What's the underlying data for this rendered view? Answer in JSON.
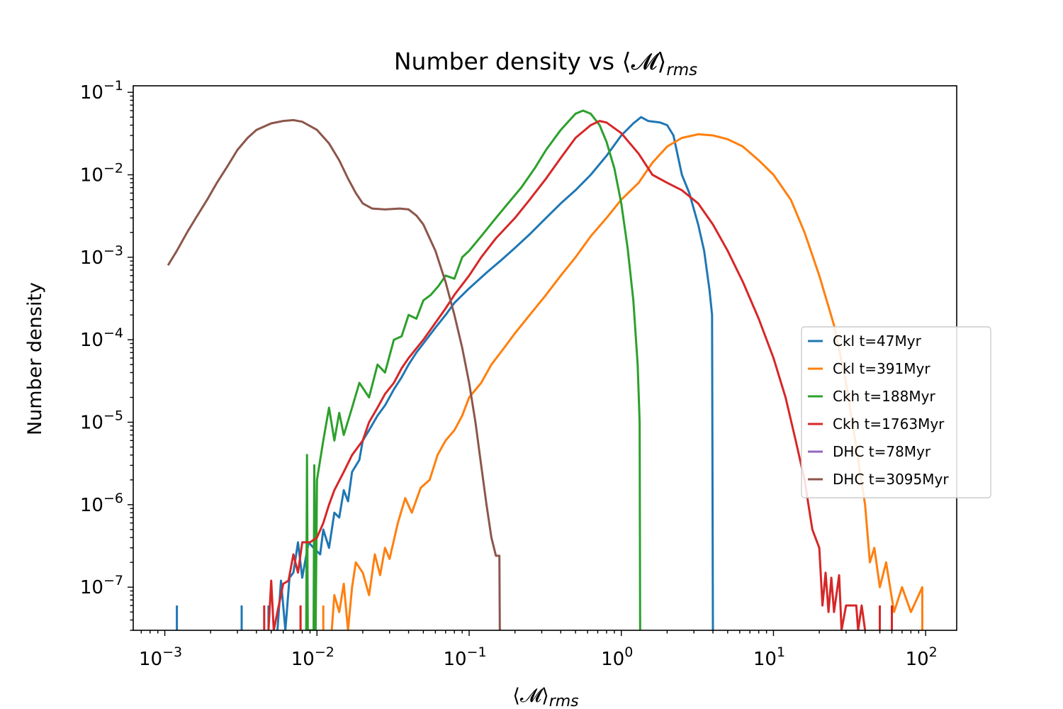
{
  "chart_data": {
    "type": "line",
    "title": "Number density vs ⟨𝓜⟩",
    "title_subscript": "rms",
    "xlabel": "⟨𝓜⟩",
    "xlabel_subscript": "rms",
    "ylabel": "Number density",
    "xscale": "log",
    "yscale": "log",
    "xlim": [
      0.00062,
      160
    ],
    "ylim": [
      3e-08,
      0.12
    ],
    "legend_position": "center-right",
    "xticks": [
      {
        "value": 0.001,
        "base": "10",
        "exp": "−3"
      },
      {
        "value": 0.01,
        "base": "10",
        "exp": "−2"
      },
      {
        "value": 0.1,
        "base": "10",
        "exp": "−1"
      },
      {
        "value": 1,
        "base": "10",
        "exp": "0"
      },
      {
        "value": 10,
        "base": "10",
        "exp": "1"
      },
      {
        "value": 100,
        "base": "10",
        "exp": "2"
      }
    ],
    "yticks": [
      {
        "value": 1e-07,
        "base": "10",
        "exp": "−7"
      },
      {
        "value": 1e-06,
        "base": "10",
        "exp": "−6"
      },
      {
        "value": 1e-05,
        "base": "10",
        "exp": "−5"
      },
      {
        "value": 0.0001,
        "base": "10",
        "exp": "−4"
      },
      {
        "value": 0.001,
        "base": "10",
        "exp": "−3"
      },
      {
        "value": 0.01,
        "base": "10",
        "exp": "−2"
      },
      {
        "value": 0.1,
        "base": "10",
        "exp": "−1"
      }
    ],
    "series": [
      {
        "name": "Ckl t=47Myr",
        "color": "#1f77b4",
        "spikes": [
          [
            0.0012,
            6e-08
          ],
          [
            0.0032,
            6e-08
          ],
          [
            0.0048,
            6e-08
          ]
        ],
        "points": [
          [
            0.0055,
            3e-08
          ],
          [
            0.0058,
            1.2e-07
          ],
          [
            0.0062,
            3e-08
          ],
          [
            0.0066,
            1.3e-07
          ],
          [
            0.007,
            1.5e-07
          ],
          [
            0.0075,
            3.5e-07
          ],
          [
            0.008,
            1.3e-07
          ],
          [
            0.0088,
            3.5e-07
          ],
          [
            0.0095,
            3e-07
          ],
          [
            0.0105,
            2.5e-07
          ],
          [
            0.011,
            5e-07
          ],
          [
            0.012,
            3e-07
          ],
          [
            0.013,
            8e-07
          ],
          [
            0.014,
            7e-07
          ],
          [
            0.015,
            1.5e-06
          ],
          [
            0.016,
            1.1e-06
          ],
          [
            0.017,
            2.5e-06
          ],
          [
            0.019,
            3.5e-06
          ],
          [
            0.02,
            6e-06
          ],
          [
            0.022,
            8e-06
          ],
          [
            0.025,
            1.2e-05
          ],
          [
            0.028,
            1.6e-05
          ],
          [
            0.032,
            2.5e-05
          ],
          [
            0.036,
            3.5e-05
          ],
          [
            0.04,
            5e-05
          ],
          [
            0.045,
            7e-05
          ],
          [
            0.05,
            9e-05
          ],
          [
            0.06,
            0.00014
          ],
          [
            0.07,
            0.0002
          ],
          [
            0.08,
            0.00028
          ],
          [
            0.1,
            0.00042
          ],
          [
            0.13,
            0.00065
          ],
          [
            0.16,
            0.0009
          ],
          [
            0.2,
            0.0013
          ],
          [
            0.25,
            0.0019
          ],
          [
            0.32,
            0.003
          ],
          [
            0.4,
            0.0045
          ],
          [
            0.5,
            0.0065
          ],
          [
            0.63,
            0.01
          ],
          [
            0.8,
            0.017
          ],
          [
            1.0,
            0.03
          ],
          [
            1.2,
            0.042
          ],
          [
            1.35,
            0.05
          ],
          [
            1.5,
            0.045
          ],
          [
            1.8,
            0.043
          ],
          [
            2.0,
            0.04
          ],
          [
            2.2,
            0.03
          ],
          [
            2.5,
            0.01
          ],
          [
            2.8,
            0.006
          ],
          [
            3.2,
            0.0025
          ],
          [
            3.5,
            0.0012
          ],
          [
            3.8,
            0.0004
          ],
          [
            3.95,
            0.0002
          ],
          [
            4.0,
            3e-08
          ]
        ]
      },
      {
        "name": "Ckl t=391Myr",
        "color": "#ff7f0e",
        "spikes": [
          [
            0.0078,
            6e-08
          ],
          [
            0.011,
            6e-08
          ]
        ],
        "points": [
          [
            0.0125,
            3e-08
          ],
          [
            0.013,
            8e-08
          ],
          [
            0.014,
            5e-08
          ],
          [
            0.015,
            1.1e-07
          ],
          [
            0.016,
            3e-08
          ],
          [
            0.017,
            1e-07
          ],
          [
            0.018,
            2e-07
          ],
          [
            0.02,
            1.5e-07
          ],
          [
            0.022,
            8e-08
          ],
          [
            0.024,
            2.5e-07
          ],
          [
            0.026,
            1.4e-07
          ],
          [
            0.028,
            3e-07
          ],
          [
            0.03,
            2.2e-07
          ],
          [
            0.034,
            6e-07
          ],
          [
            0.038,
            1.2e-06
          ],
          [
            0.042,
            8e-07
          ],
          [
            0.048,
            1.6e-06
          ],
          [
            0.055,
            2e-06
          ],
          [
            0.062,
            4e-06
          ],
          [
            0.07,
            6e-06
          ],
          [
            0.08,
            8e-06
          ],
          [
            0.09,
            1.2e-05
          ],
          [
            0.1,
            2e-05
          ],
          [
            0.12,
            3e-05
          ],
          [
            0.14,
            5e-05
          ],
          [
            0.17,
            8e-05
          ],
          [
            0.2,
            0.00012
          ],
          [
            0.25,
            0.0002
          ],
          [
            0.32,
            0.00035
          ],
          [
            0.4,
            0.0006
          ],
          [
            0.5,
            0.001
          ],
          [
            0.63,
            0.0018
          ],
          [
            0.8,
            0.003
          ],
          [
            1.0,
            0.005
          ],
          [
            1.3,
            0.008
          ],
          [
            1.6,
            0.014
          ],
          [
            2.0,
            0.022
          ],
          [
            2.5,
            0.028
          ],
          [
            3.2,
            0.031
          ],
          [
            4.0,
            0.03
          ],
          [
            5.0,
            0.027
          ],
          [
            6.3,
            0.022
          ],
          [
            8.0,
            0.015
          ],
          [
            10.0,
            0.01
          ],
          [
            13.0,
            0.005
          ],
          [
            16.0,
            0.002
          ],
          [
            20.0,
            0.0006
          ],
          [
            25.0,
            0.00015
          ],
          [
            30.0,
            3e-05
          ],
          [
            35.0,
            5e-06
          ],
          [
            40.0,
            1e-06
          ],
          [
            43.0,
            2e-07
          ],
          [
            46.0,
            3e-07
          ],
          [
            50.0,
            1e-07
          ],
          [
            55.0,
            2e-07
          ],
          [
            62.0,
            5e-08
          ],
          [
            70.0,
            1e-07
          ],
          [
            80.0,
            5e-08
          ],
          [
            95.0,
            1e-07
          ],
          [
            95.1,
            3e-08
          ]
        ]
      },
      {
        "name": "Ckh t=188Myr",
        "color": "#2ca02c",
        "spikes": [],
        "points": [
          [
            0.0085,
            3e-08
          ],
          [
            0.0086,
            4e-06
          ],
          [
            0.0087,
            3e-08
          ],
          [
            0.0095,
            3e-08
          ],
          [
            0.0096,
            3e-06
          ],
          [
            0.0098,
            3e-08
          ],
          [
            0.01,
            2e-06
          ],
          [
            0.011,
            6e-06
          ],
          [
            0.012,
            1.5e-05
          ],
          [
            0.013,
            6e-06
          ],
          [
            0.014,
            1.3e-05
          ],
          [
            0.015,
            7e-06
          ],
          [
            0.017,
            1.5e-05
          ],
          [
            0.019,
            3e-05
          ],
          [
            0.022,
            2e-05
          ],
          [
            0.025,
            5e-05
          ],
          [
            0.028,
            4e-05
          ],
          [
            0.032,
            0.0001
          ],
          [
            0.036,
            0.00011
          ],
          [
            0.04,
            0.0002
          ],
          [
            0.045,
            0.00018
          ],
          [
            0.05,
            0.0003
          ],
          [
            0.056,
            0.00035
          ],
          [
            0.063,
            0.00045
          ],
          [
            0.07,
            0.0006
          ],
          [
            0.08,
            0.00055
          ],
          [
            0.09,
            0.001
          ],
          [
            0.1,
            0.0012
          ],
          [
            0.12,
            0.0018
          ],
          [
            0.15,
            0.003
          ],
          [
            0.18,
            0.0045
          ],
          [
            0.22,
            0.007
          ],
          [
            0.27,
            0.012
          ],
          [
            0.32,
            0.02
          ],
          [
            0.4,
            0.035
          ],
          [
            0.5,
            0.055
          ],
          [
            0.56,
            0.06
          ],
          [
            0.63,
            0.055
          ],
          [
            0.72,
            0.04
          ],
          [
            0.8,
            0.025
          ],
          [
            0.9,
            0.012
          ],
          [
            1.0,
            0.0045
          ],
          [
            1.1,
            0.0013
          ],
          [
            1.2,
            0.0003
          ],
          [
            1.28,
            5e-05
          ],
          [
            1.32,
            1e-05
          ],
          [
            1.33,
            3e-08
          ]
        ]
      },
      {
        "name": "Ckh t=1763Myr",
        "color": "#d62728",
        "spikes": [
          [
            0.0045,
            6e-08
          ],
          [
            0.0078,
            6e-08
          ]
        ],
        "points": [
          [
            0.0048,
            3e-08
          ],
          [
            0.005,
            1.2e-07
          ],
          [
            0.0052,
            3e-08
          ],
          [
            0.0055,
            5e-08
          ],
          [
            0.006,
            1.1e-07
          ],
          [
            0.0065,
            1.2e-07
          ],
          [
            0.007,
            2.5e-07
          ],
          [
            0.0075,
            1.5e-07
          ],
          [
            0.008,
            3.5e-07
          ],
          [
            0.009,
            3.5e-07
          ],
          [
            0.01,
            4e-07
          ],
          [
            0.011,
            6e-07
          ],
          [
            0.012,
            1e-06
          ],
          [
            0.013,
            1.5e-06
          ],
          [
            0.015,
            2.5e-06
          ],
          [
            0.017,
            4e-06
          ],
          [
            0.02,
            6e-06
          ],
          [
            0.022,
            1e-05
          ],
          [
            0.025,
            1.5e-05
          ],
          [
            0.028,
            2.2e-05
          ],
          [
            0.032,
            3e-05
          ],
          [
            0.036,
            4.5e-05
          ],
          [
            0.04,
            6e-05
          ],
          [
            0.05,
            0.0001
          ],
          [
            0.06,
            0.00016
          ],
          [
            0.07,
            0.00024
          ],
          [
            0.08,
            0.00035
          ],
          [
            0.1,
            0.0006
          ],
          [
            0.12,
            0.001
          ],
          [
            0.15,
            0.0017
          ],
          [
            0.2,
            0.003
          ],
          [
            0.25,
            0.005
          ],
          [
            0.32,
            0.009
          ],
          [
            0.4,
            0.016
          ],
          [
            0.5,
            0.028
          ],
          [
            0.63,
            0.04
          ],
          [
            0.72,
            0.045
          ],
          [
            0.8,
            0.043
          ],
          [
            1.0,
            0.032
          ],
          [
            1.3,
            0.018
          ],
          [
            1.6,
            0.01
          ],
          [
            2.0,
            0.008
          ],
          [
            2.5,
            0.0065
          ],
          [
            3.2,
            0.0045
          ],
          [
            4.0,
            0.0025
          ],
          [
            5.0,
            0.0012
          ],
          [
            6.3,
            0.0005
          ],
          [
            8.0,
            0.00018
          ],
          [
            10.0,
            6e-05
          ],
          [
            12.0,
            2e-05
          ],
          [
            14.0,
            6e-06
          ],
          [
            16.0,
            2e-06
          ],
          [
            18.0,
            5e-07
          ],
          [
            20.0,
            3e-07
          ],
          [
            21.0,
            6e-08
          ],
          [
            22.0,
            1.5e-07
          ],
          [
            23.0,
            5e-08
          ],
          [
            24.0,
            1.3e-07
          ],
          [
            25.0,
            5e-08
          ],
          [
            27.0,
            1.4e-07
          ],
          [
            28.0,
            3e-08
          ],
          [
            30.0,
            6e-08
          ],
          [
            35.0,
            6e-08
          ],
          [
            36.0,
            3e-08
          ],
          [
            38.0,
            6e-08
          ],
          [
            40.0,
            3e-08
          ]
        ],
        "tail_spikes": [
          [
            50.0,
            6e-08
          ],
          [
            60.0,
            6e-08
          ]
        ]
      },
      {
        "name": "DHC t=78Myr",
        "color": "#9467bd",
        "spikes": [],
        "points": []
      },
      {
        "name": "DHC t=3095Myr",
        "color": "#8c564b",
        "spikes": [],
        "points": [
          [
            0.00105,
            0.0008
          ],
          [
            0.0012,
            0.0012
          ],
          [
            0.0014,
            0.002
          ],
          [
            0.0016,
            0.003
          ],
          [
            0.0019,
            0.005
          ],
          [
            0.0022,
            0.008
          ],
          [
            0.0026,
            0.013
          ],
          [
            0.003,
            0.02
          ],
          [
            0.0035,
            0.028
          ],
          [
            0.004,
            0.035
          ],
          [
            0.005,
            0.042
          ],
          [
            0.006,
            0.045
          ],
          [
            0.007,
            0.046
          ],
          [
            0.008,
            0.044
          ],
          [
            0.01,
            0.035
          ],
          [
            0.012,
            0.024
          ],
          [
            0.014,
            0.015
          ],
          [
            0.016,
            0.009
          ],
          [
            0.018,
            0.006
          ],
          [
            0.02,
            0.0045
          ],
          [
            0.023,
            0.0039
          ],
          [
            0.028,
            0.0038
          ],
          [
            0.035,
            0.0039
          ],
          [
            0.04,
            0.0038
          ],
          [
            0.045,
            0.0032
          ],
          [
            0.05,
            0.0025
          ],
          [
            0.06,
            0.0012
          ],
          [
            0.07,
            0.0005
          ],
          [
            0.08,
            0.0002
          ],
          [
            0.09,
            8e-05
          ],
          [
            0.1,
            3e-05
          ],
          [
            0.11,
            1e-05
          ],
          [
            0.12,
            3e-06
          ],
          [
            0.13,
            1e-06
          ],
          [
            0.14,
            4e-07
          ],
          [
            0.15,
            2.4e-07
          ],
          [
            0.158,
            2.4e-07
          ],
          [
            0.159,
            3e-08
          ]
        ]
      }
    ]
  }
}
